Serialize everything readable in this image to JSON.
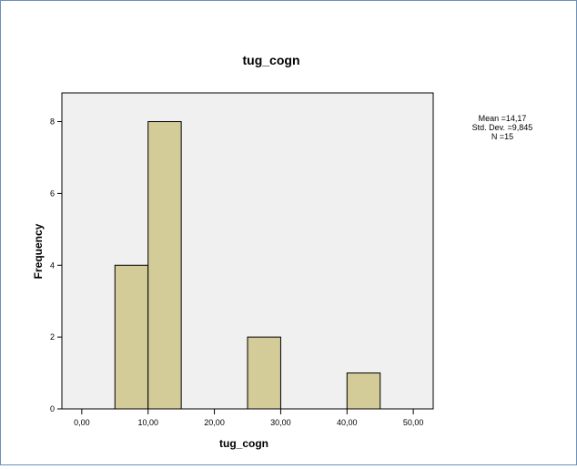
{
  "chart_data": {
    "type": "bar",
    "title": "tug_cogn",
    "xlabel": "tug_cogn",
    "ylabel": "Frequency",
    "xlim": [
      -3,
      53
    ],
    "ylim": [
      0,
      8.8
    ],
    "bins": [
      {
        "start": 5,
        "end": 10,
        "count": 4
      },
      {
        "start": 10,
        "end": 15,
        "count": 8
      },
      {
        "start": 25,
        "end": 30,
        "count": 2
      },
      {
        "start": 40,
        "end": 45,
        "count": 1
      }
    ],
    "x_ticks": [
      {
        "value": 0,
        "label": "0,00"
      },
      {
        "value": 10,
        "label": "10,00"
      },
      {
        "value": 20,
        "label": "20,00"
      },
      {
        "value": 30,
        "label": "30,00"
      },
      {
        "value": 40,
        "label": "40,00"
      },
      {
        "value": 50,
        "label": "50,00"
      }
    ],
    "y_ticks": [
      {
        "value": 0,
        "label": "0"
      },
      {
        "value": 2,
        "label": "2"
      },
      {
        "value": 4,
        "label": "4"
      },
      {
        "value": 6,
        "label": "6"
      },
      {
        "value": 8,
        "label": "8"
      }
    ],
    "stats": {
      "mean": "Mean =14,17",
      "std_dev": "Std. Dev. =9,845",
      "n": "N =15"
    },
    "colors": {
      "bar_fill": "#d4cc98",
      "bar_stroke": "#000000",
      "plot_background": "#f0f0f0",
      "frame_border": "#6d8fb8"
    },
    "grid": false
  }
}
